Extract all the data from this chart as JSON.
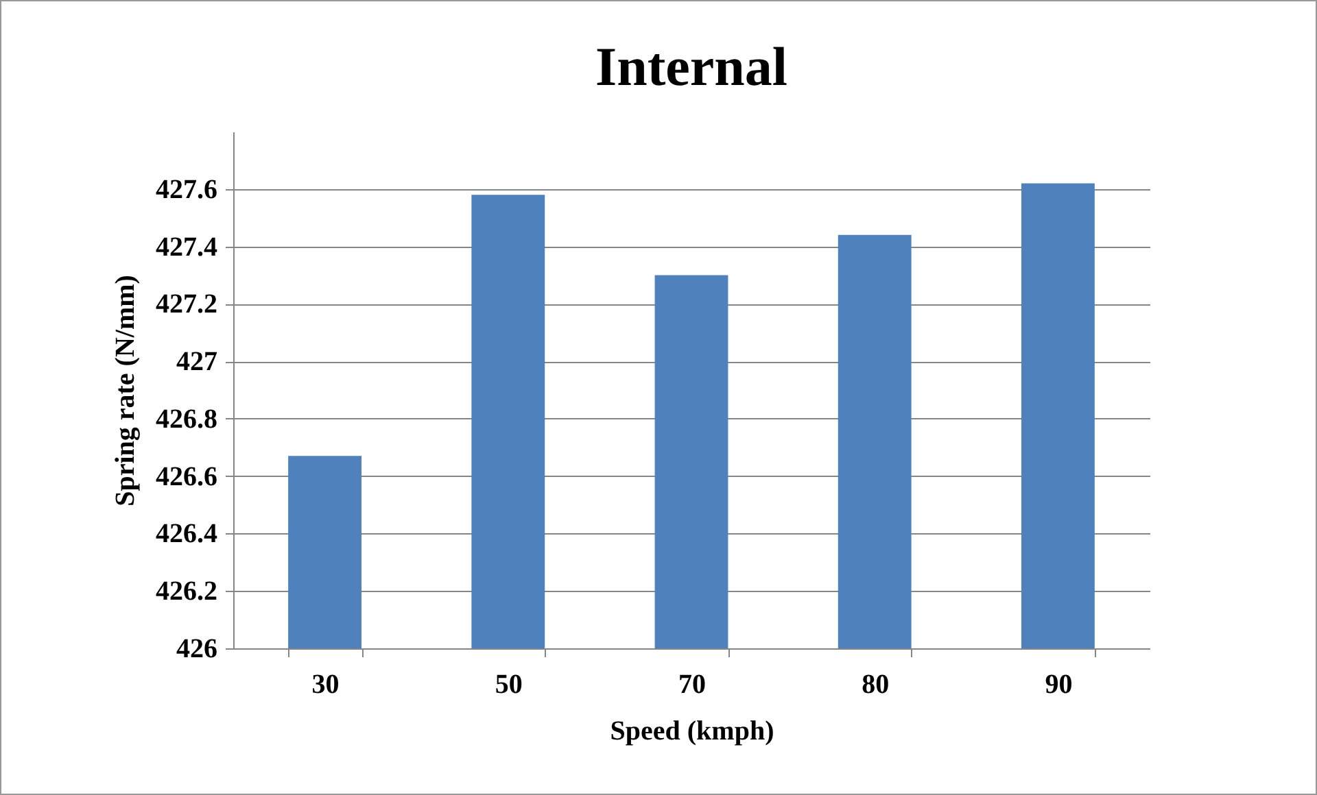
{
  "chart_data": {
    "type": "bar",
    "title": "Internal",
    "xlabel": "Speed (kmph)",
    "ylabel": "Spring rate (N/mm)",
    "categories": [
      "30",
      "50",
      "70",
      "80",
      "90"
    ],
    "values": [
      426.67,
      427.58,
      427.3,
      427.44,
      427.62
    ],
    "color": "#4f81bd",
    "ylim": [
      426,
      427.8
    ],
    "yticks": [
      426,
      426.2,
      426.4,
      426.6,
      426.8,
      427,
      427.2,
      427.4,
      427.6
    ],
    "grid": "y"
  }
}
